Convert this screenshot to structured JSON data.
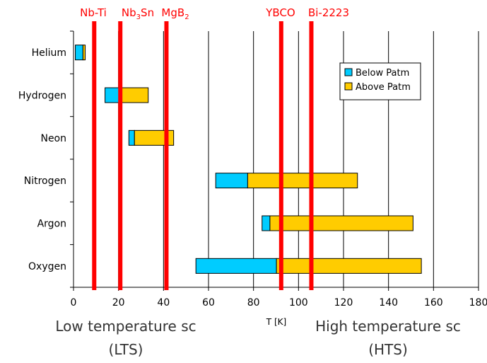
{
  "chart_data": {
    "type": "bar",
    "orientation": "horizontal-floating",
    "categories": [
      "Helium",
      "Hydrogen",
      "Neon",
      "Nitrogen",
      "Argon",
      "Oxygen"
    ],
    "series": [
      {
        "name": "Below Patm",
        "color": "#00ccff",
        "ranges": [
          [
            0.8,
            4.2
          ],
          [
            14.0,
            20.3
          ],
          [
            24.6,
            27.1
          ],
          [
            63.2,
            77.4
          ],
          [
            83.8,
            87.3
          ],
          [
            54.4,
            90.2
          ]
        ]
      },
      {
        "name": "Above Patm",
        "color": "#ffcc00",
        "ranges": [
          [
            4.2,
            5.2
          ],
          [
            20.3,
            33.2
          ],
          [
            27.1,
            44.5
          ],
          [
            77.4,
            126.2
          ],
          [
            87.3,
            150.9
          ],
          [
            90.2,
            154.6
          ]
        ]
      }
    ],
    "xlim": [
      0,
      180
    ],
    "xticks": [
      "0",
      "20",
      "40",
      "60",
      "80",
      "100",
      "120",
      "140",
      "160",
      "180"
    ],
    "xlabel": "T [K]",
    "ylabel": "",
    "grid": "vertical",
    "legend": "top-right",
    "vertical_markers": [
      {
        "label": "Nb-Ti",
        "x": 9.2,
        "color": "#ff0000"
      },
      {
        "label": "Nb3Sn",
        "x": 20.8,
        "color": "#ff0000"
      },
      {
        "label": "MgB2",
        "x": 41.3,
        "color": "#ff0000"
      },
      {
        "label": "YBCO",
        "x": 92.3,
        "color": "#ff0000"
      },
      {
        "label": "Bi-2223",
        "x": 105.7,
        "color": "#ff0000"
      }
    ],
    "annotations": [
      {
        "line1": "Low temperature sc",
        "line2": "(LTS)"
      },
      {
        "line1": "High temperature sc",
        "line2": "(HTS)"
      }
    ]
  }
}
